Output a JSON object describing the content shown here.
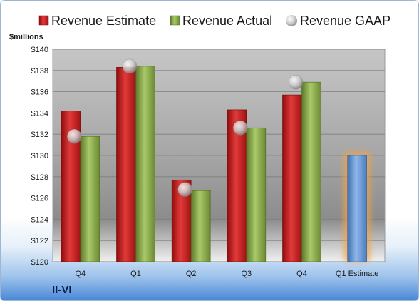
{
  "company": "II-VI",
  "chart_data": {
    "type": "bar",
    "ylabel": "$millions",
    "ylim": [
      120,
      140
    ],
    "ytick_step": 2,
    "grid": true,
    "legend_position": "top",
    "categories": [
      "Q4",
      "Q1",
      "Q2",
      "Q3",
      "Q4",
      "Q1 Estimate"
    ],
    "series": [
      {
        "name": "Revenue Estimate",
        "kind": "bar",
        "color": "#c81e1e",
        "values": [
          134.2,
          138.3,
          127.7,
          134.3,
          135.7,
          null
        ]
      },
      {
        "name": "Revenue Actual",
        "kind": "bar",
        "color": "#8db04a",
        "values": [
          131.8,
          138.4,
          126.7,
          132.6,
          136.9,
          130.0
        ]
      },
      {
        "name": "Revenue GAAP",
        "kind": "marker",
        "color": "#c9c9c9",
        "values": [
          131.8,
          138.4,
          126.8,
          132.6,
          136.9,
          null
        ]
      }
    ],
    "highlight": {
      "category_index": 5,
      "color": "#6f9fd8",
      "glow": "#f5a243"
    }
  }
}
